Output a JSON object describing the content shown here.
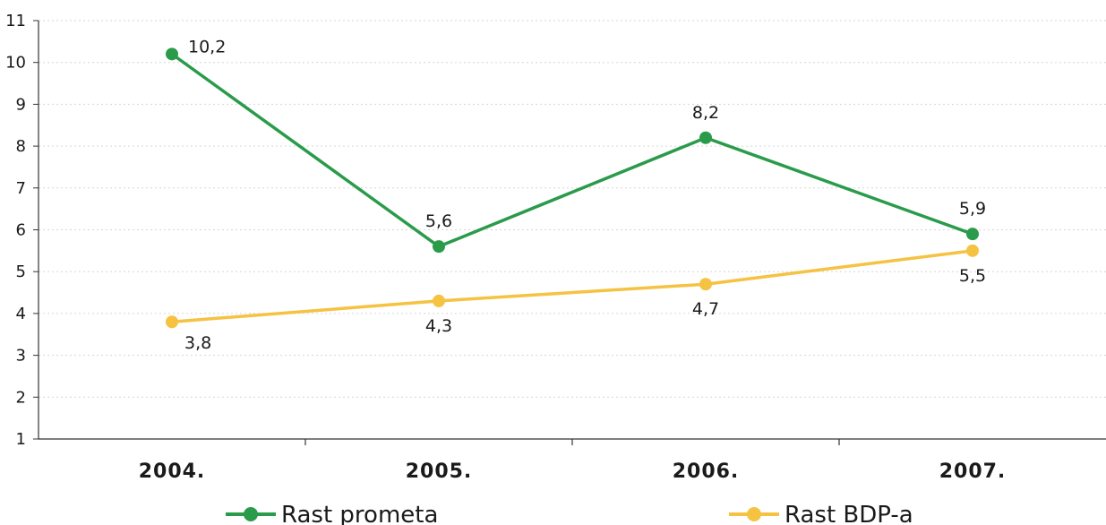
{
  "chart_data": {
    "type": "line",
    "title": "",
    "xlabel": "",
    "ylabel": "",
    "categories": [
      "2004.",
      "2005.",
      "2006.",
      "2007."
    ],
    "ylim": [
      1,
      11
    ],
    "y_ticks": [
      "1",
      "2",
      "3",
      "4",
      "5",
      "6",
      "7",
      "8",
      "9",
      "10",
      "11"
    ],
    "grid": "horizontal-dotted",
    "legend_position": "bottom",
    "series": [
      {
        "name": "Rast prometa",
        "color": "#2a9b4a",
        "values": [
          10.2,
          5.6,
          8.2,
          5.9
        ],
        "labels": [
          "10,2",
          "5,6",
          "8,2",
          "5,9"
        ],
        "label_side": [
          "right",
          "above",
          "above",
          "above"
        ]
      },
      {
        "name": "Rast BDP-a",
        "color": "#f5c242",
        "values": [
          3.8,
          4.3,
          4.7,
          5.5
        ],
        "labels": [
          "3,8",
          "4,3",
          "4,7",
          "5,5"
        ],
        "label_side": [
          "below-right",
          "below",
          "below",
          "below"
        ]
      }
    ]
  }
}
